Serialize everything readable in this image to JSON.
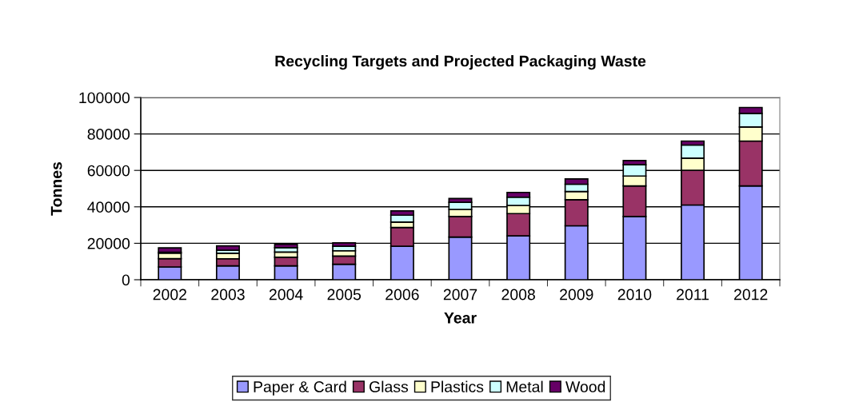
{
  "chart_data": {
    "type": "bar",
    "stacked": true,
    "title": "Recycling Targets and Projected Packaging Waste",
    "xlabel": "Year",
    "ylabel": "Tonnes",
    "categories": [
      "2002",
      "2003",
      "2004",
      "2005",
      "2006",
      "2007",
      "2008",
      "2009",
      "2010",
      "2011",
      "2012"
    ],
    "series": [
      {
        "name": "Paper & Card",
        "color": "#9999ff",
        "values": [
          7000,
          7600,
          7600,
          8500,
          18400,
          23400,
          24100,
          29600,
          34700,
          41000,
          51500
        ]
      },
      {
        "name": "Glass",
        "color": "#993366",
        "values": [
          4600,
          3900,
          4700,
          4500,
          10300,
          11300,
          12200,
          14300,
          16800,
          19100,
          24600
        ]
      },
      {
        "name": "Plastics",
        "color": "#ffffcc",
        "values": [
          3000,
          3000,
          2900,
          2900,
          2900,
          3900,
          4500,
          4500,
          5400,
          6600,
          7700
        ]
      },
      {
        "name": "Metal",
        "color": "#ccffff",
        "values": [
          500,
          1700,
          2400,
          2500,
          3800,
          3900,
          4500,
          4000,
          6200,
          7200,
          7500
        ]
      },
      {
        "name": "Wood",
        "color": "#660066",
        "values": [
          2400,
          2400,
          1800,
          1800,
          2400,
          2100,
          2600,
          2900,
          2300,
          2200,
          3200
        ]
      }
    ],
    "ylim": [
      0,
      100000
    ],
    "yticks": [
      0,
      20000,
      40000,
      60000,
      80000,
      100000
    ],
    "grid": "y",
    "legend": "bottom"
  }
}
